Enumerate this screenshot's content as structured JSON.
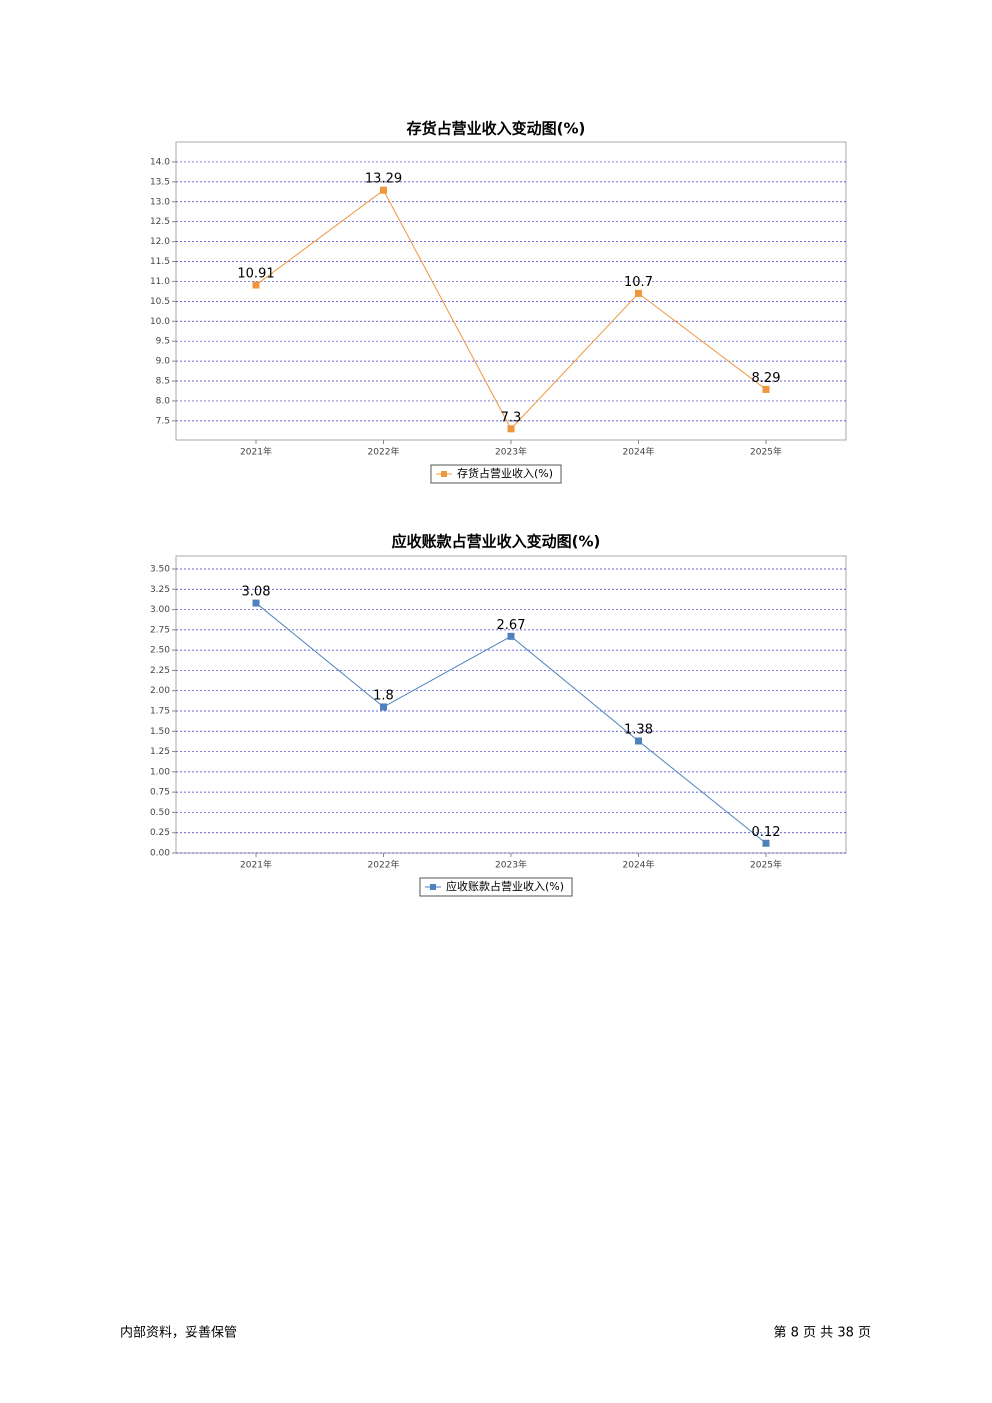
{
  "chart_data": [
    {
      "type": "line",
      "title": "存货占营业收入变动图(%)",
      "categories": [
        "2021年",
        "2022年",
        "2023年",
        "2024年",
        "2025年"
      ],
      "series": [
        {
          "name": "存货占营业收入(%)",
          "color": "#f0963c",
          "values": [
            10.91,
            13.29,
            7.3,
            10.7,
            8.29
          ]
        }
      ],
      "ylim": [
        7.02,
        14.5
      ],
      "yticks": [
        7.5,
        {
          "value": 8,
          "label": "8.0"
        },
        8.5,
        {
          "value": 9,
          "label": "9.0"
        },
        9.5,
        {
          "value": 10,
          "label": "10.0"
        },
        10.5,
        {
          "value": 11,
          "label": "11.0"
        },
        11.5,
        {
          "value": 12,
          "label": "12.0"
        },
        12.5,
        {
          "value": 13,
          "label": "13.0"
        },
        13.5,
        {
          "value": 14,
          "label": "14.0"
        }
      ],
      "grid": true,
      "legend": "bottom"
    },
    {
      "type": "line",
      "title": "应收账款占营业收入变动图(%)",
      "categories": [
        "2021年",
        "2022年",
        "2023年",
        "2024年",
        "2025年"
      ],
      "series": [
        {
          "name": "应收账款占营业收入(%)",
          "color": "#4f81bd",
          "values": [
            3.08,
            1.8,
            2.67,
            1.38,
            0.12
          ]
        }
      ],
      "ylim": [
        0,
        3.66
      ],
      "yticks": [
        {
          "value": 0,
          "label": "0.00"
        },
        {
          "value": 0.25,
          "label": "0.25"
        },
        {
          "value": 0.5,
          "label": "0.50"
        },
        {
          "value": 0.75,
          "label": "0.75"
        },
        {
          "value": 1,
          "label": "1.00"
        },
        {
          "value": 1.25,
          "label": "1.25"
        },
        {
          "value": 1.5,
          "label": "1.50"
        },
        {
          "value": 1.75,
          "label": "1.75"
        },
        {
          "value": 2,
          "label": "2.00"
        },
        {
          "value": 2.25,
          "label": "2.25"
        },
        {
          "value": 2.5,
          "label": "2.50"
        },
        {
          "value": 2.75,
          "label": "2.75"
        },
        {
          "value": 3,
          "label": "3.00"
        },
        {
          "value": 3.25,
          "label": "3.25"
        },
        {
          "value": 3.5,
          "label": "3.50"
        }
      ],
      "grid": true,
      "legend": "bottom"
    }
  ],
  "footer": {
    "left": "内部资料，妥善保管",
    "right": "第 8 页   共 38 页"
  }
}
